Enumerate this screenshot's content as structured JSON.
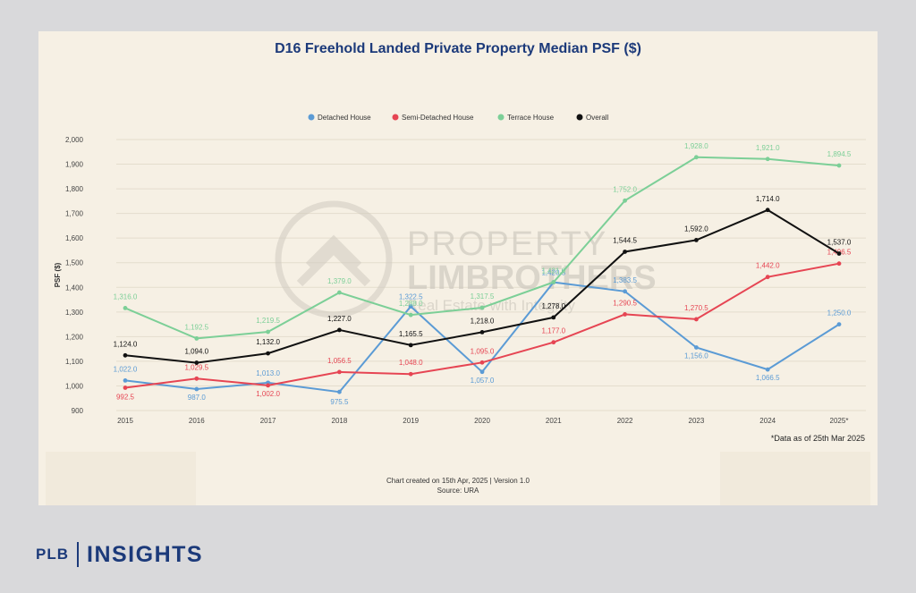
{
  "chart_data": {
    "type": "line",
    "title": "D16 Freehold Landed Private Property Median PSF ($)",
    "ylabel": "PSF ($)",
    "xlabel": "",
    "x": [
      "2015",
      "2016",
      "2017",
      "2018",
      "2019",
      "2020",
      "2021",
      "2022",
      "2023",
      "2024",
      "2025*"
    ],
    "ylim": [
      900,
      2000
    ],
    "yticks": [
      "900",
      "1,000",
      "1,100",
      "1,200",
      "1,300",
      "1,400",
      "1,500",
      "1,600",
      "1,700",
      "1,800",
      "1,900",
      "2,000"
    ],
    "grid": true,
    "legend_position": "top-center",
    "series": [
      {
        "name": "Detached House",
        "color": "#5b9bd5",
        "values": [
          1022.0,
          987.0,
          1013.0,
          975.5,
          1322.5,
          1057.0,
          1420.5,
          1383.5,
          1156.0,
          1066.5,
          1250.0
        ],
        "labels": [
          "1,022.0",
          "987.0",
          "1,013.0",
          "975.5",
          "1,322.5",
          "1,057.0",
          "1,420.5",
          "1,383.5",
          "1,156.0",
          "1,066.5",
          "1,250.0"
        ]
      },
      {
        "name": "Semi-Detached House",
        "color": "#e64553",
        "values": [
          992.5,
          1029.5,
          1002.0,
          1056.5,
          1048.0,
          1095.0,
          1177.0,
          1290.5,
          1270.5,
          1442.0,
          1496.5
        ],
        "labels": [
          "992.5",
          "1,029.5",
          "1,002.0",
          "1,056.5",
          "1,048.0",
          "1,095.0",
          "1,177.0",
          "1,290.5",
          "1,270.5",
          "1,442.0",
          "1,496.5"
        ]
      },
      {
        "name": "Terrace House",
        "color": "#7ccf97",
        "values": [
          1316.0,
          1192.5,
          1219.5,
          1379.0,
          1288.0,
          1317.5,
          1421.0,
          1752.0,
          1928.0,
          1921.0,
          1894.5
        ],
        "labels": [
          "1,316.0",
          "1,192.5",
          "1,219.5",
          "1,379.0",
          "1,288.0",
          "1,317.5",
          "1,421.0",
          "1,752.0",
          "1,928.0",
          "1,921.0",
          "1,894.5"
        ]
      },
      {
        "name": "Overall",
        "color": "#111111",
        "values": [
          1124.0,
          1094.0,
          1132.0,
          1227.0,
          1165.5,
          1218.0,
          1278.0,
          1544.5,
          1592.0,
          1714.0,
          1537.0
        ],
        "labels": [
          "1,124.0",
          "1,094.0",
          "1,132.0",
          "1,227.0",
          "1,165.5",
          "1,218.0",
          "1,278.0",
          "1,544.5",
          "1,592.0",
          "1,714.0",
          "1,537.0"
        ]
      }
    ]
  },
  "watermark": {
    "line1": "PROPERTY",
    "line2": "LIMBROTHERS",
    "line3": "Real Estate with Integrity"
  },
  "note": "*Data as of 25th Mar 2025",
  "footer": {
    "line1": "Chart created on 15th Apr, 2025 | Version 1.0",
    "line2": "Source: URA"
  },
  "brand": {
    "plb": "PLB",
    "insights": "INSIGHTS",
    "color": "#1c3a7a"
  }
}
